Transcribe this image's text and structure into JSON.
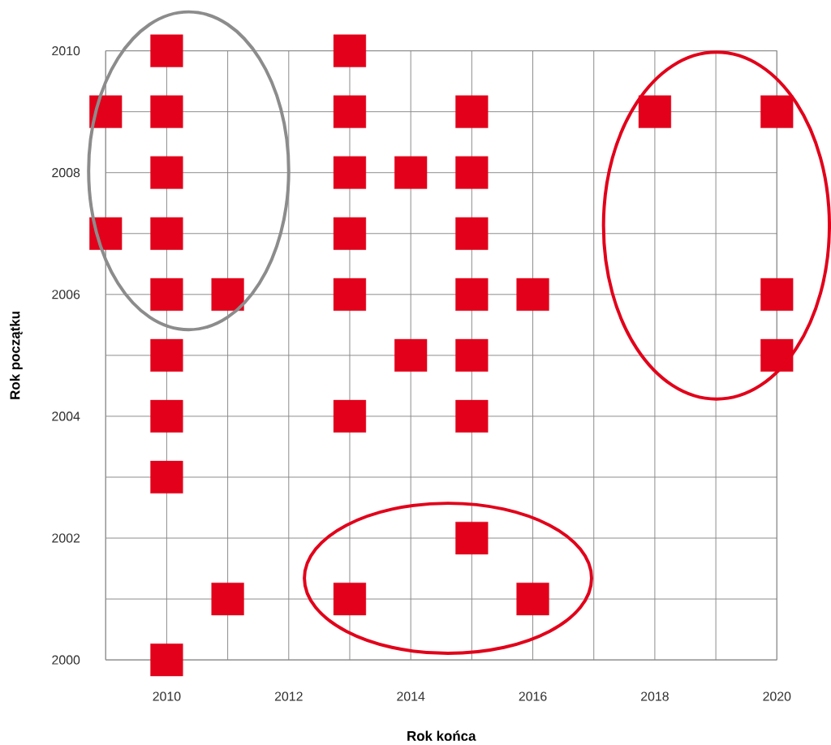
{
  "chart_data": {
    "type": "scatter",
    "xlabel": "Rok końca",
    "ylabel": "Rok początku",
    "x": [
      2009,
      2009,
      2010,
      2010,
      2010,
      2010,
      2010,
      2010,
      2010,
      2010,
      2010,
      2011,
      2011,
      2013,
      2013,
      2013,
      2013,
      2013,
      2013,
      2013,
      2014,
      2014,
      2015,
      2015,
      2015,
      2015,
      2015,
      2015,
      2015,
      2016,
      2016,
      2018,
      2020,
      2020,
      2020
    ],
    "values": [
      2009,
      2007,
      2010,
      2009,
      2008,
      2007,
      2006,
      2005,
      2004,
      2003,
      2000,
      2006,
      2001,
      2010,
      2009,
      2008,
      2007,
      2006,
      2004,
      2001,
      2008,
      2005,
      2009,
      2008,
      2007,
      2006,
      2005,
      2004,
      2002,
      2006,
      2001,
      2009,
      2009,
      2006,
      2005
    ],
    "color": "#e2001a",
    "marker": "square",
    "grid": true,
    "xlim": [
      2009,
      2020
    ],
    "ylim": [
      2000,
      2010
    ],
    "xticks": [
      {
        "value": 2009,
        "label": null
      },
      2010,
      {
        "value": 2011,
        "label": null
      },
      2012,
      {
        "value": 2013,
        "label": null
      },
      2014,
      {
        "value": 2015,
        "label": null
      },
      2016,
      {
        "value": 2017,
        "label": null
      },
      2018,
      {
        "value": 2019,
        "label": null
      },
      2020
    ],
    "yticks": [
      2000,
      {
        "value": 2001,
        "label": null
      },
      2002,
      {
        "value": 2003,
        "label": null
      },
      2004,
      {
        "value": 2005,
        "label": null
      },
      2006,
      {
        "value": 2007,
        "label": null
      },
      2008,
      {
        "value": 2009,
        "label": null
      },
      2010
    ]
  }
}
